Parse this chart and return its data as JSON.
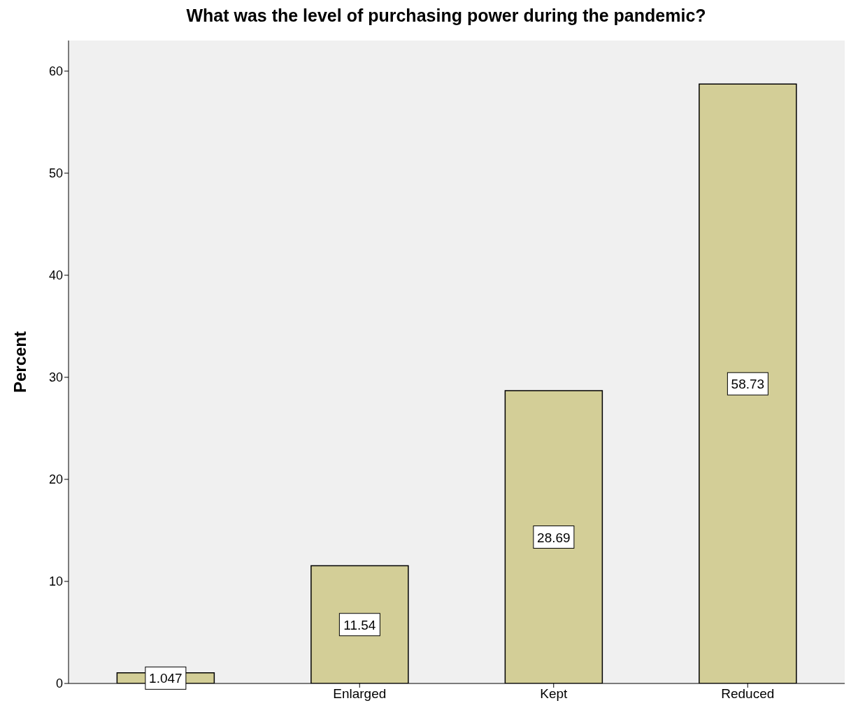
{
  "chart_data": {
    "type": "bar",
    "title": "What was the level of purchasing power during the pandemic?",
    "ylabel": "Percent",
    "categories": [
      null,
      "Enlarged",
      "Kept",
      "Reduced"
    ],
    "values": [
      1.047,
      11.54,
      28.69,
      58.73
    ],
    "color": "#d3ce97",
    "ylim": [
      0,
      63
    ],
    "yticks": [
      0,
      10,
      20,
      30,
      40,
      50,
      60
    ],
    "grid": false,
    "legend": false,
    "data_labels": true
  }
}
